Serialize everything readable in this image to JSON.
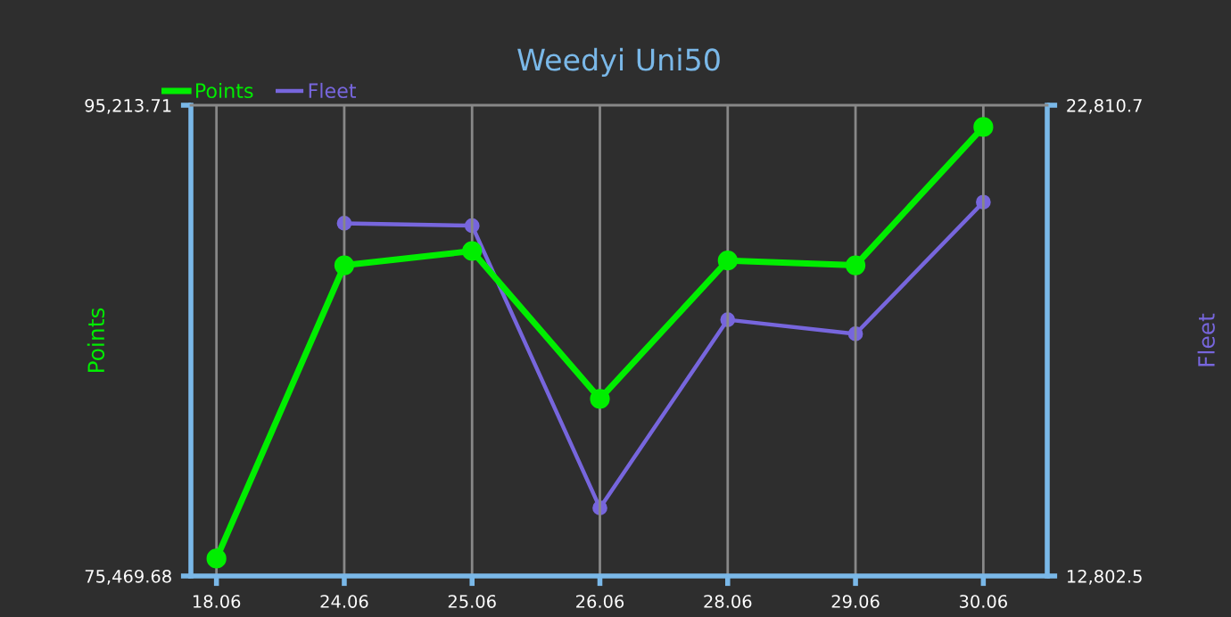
{
  "chart_data": {
    "type": "line",
    "title": "Weedyi Uni50",
    "ylabel": "Points",
    "y2label": "Fleet",
    "categories": [
      "18.06",
      "24.06",
      "25.06",
      "26.06",
      "28.06",
      "29.06",
      "30.06"
    ],
    "series": [
      {
        "name": "Points",
        "color": "#00ee00",
        "values": [
          76200,
          88500,
          89100,
          82900,
          88700,
          88500,
          94300
        ]
      },
      {
        "name": "Fleet",
        "color": "#7766dd",
        "axis": "y2",
        "values": [
          null,
          20300,
          20250,
          14250,
          18250,
          17950,
          20750
        ]
      }
    ],
    "ylim": [
      75469.68,
      95213.71
    ],
    "yticks": [
      {
        "value": 75469.68,
        "label": "75,469.68"
      },
      {
        "value": 95213.71,
        "label": "95,213.71"
      }
    ],
    "y2lim": [
      12802.5,
      22810.7
    ],
    "y2ticks": [
      {
        "value": 12802.5,
        "label": "12,802.5"
      },
      {
        "value": 22810.7,
        "label": "22,810.7"
      }
    ],
    "grid": "x",
    "legend": "top left",
    "marker": "circle",
    "line_style": "solid"
  }
}
